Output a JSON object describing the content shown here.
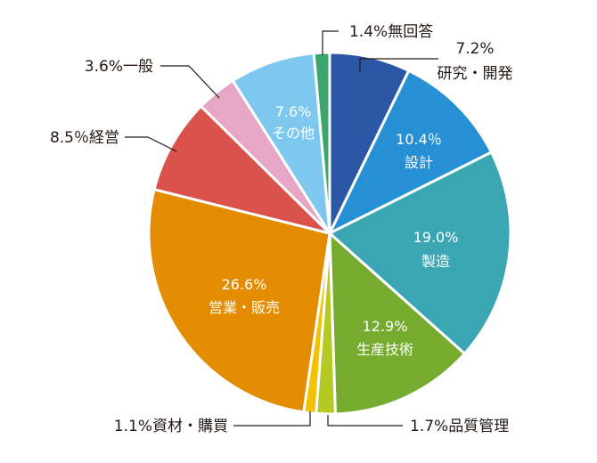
{
  "chart_data": {
    "type": "pie",
    "title": "",
    "slices": [
      {
        "category": "研究・開発",
        "value_label": "7.2%",
        "value": 7.2,
        "color": "#2c57a5"
      },
      {
        "category": "設計",
        "value_label": "10.4％",
        "value": 10.4,
        "color": "#2790d4"
      },
      {
        "category": "製造",
        "value_label": "19.0%",
        "value": 19.0,
        "color": "#3aa6b3"
      },
      {
        "category": "生産技術",
        "value_label": "12.9%",
        "value": 12.9,
        "color": "#75ab2f"
      },
      {
        "category": "品質管理",
        "value_label": "1.7%",
        "value": 1.7,
        "color": "#b4c922"
      },
      {
        "category": "資材・購買",
        "value_label": "1.1%",
        "value": 1.1,
        "color": "#f2c100"
      },
      {
        "category": "営業・販売",
        "value_label": "26.6%",
        "value": 26.6,
        "color": "#e38c00"
      },
      {
        "category": "経営",
        "value_label": "8.5％",
        "value": 8.5,
        "color": "#d9534c"
      },
      {
        "category": "一般",
        "value_label": "3.6%",
        "value": 3.6,
        "color": "#e7a6c5"
      },
      {
        "category": "その他",
        "value_label": "7.6%",
        "value": 7.6,
        "color": "#7ec7ef"
      },
      {
        "category": "無回答",
        "value_label": "1.4%",
        "value": 1.4,
        "color": "#3aa66d"
      }
    ],
    "start": "12 o'clock, clockwise"
  }
}
